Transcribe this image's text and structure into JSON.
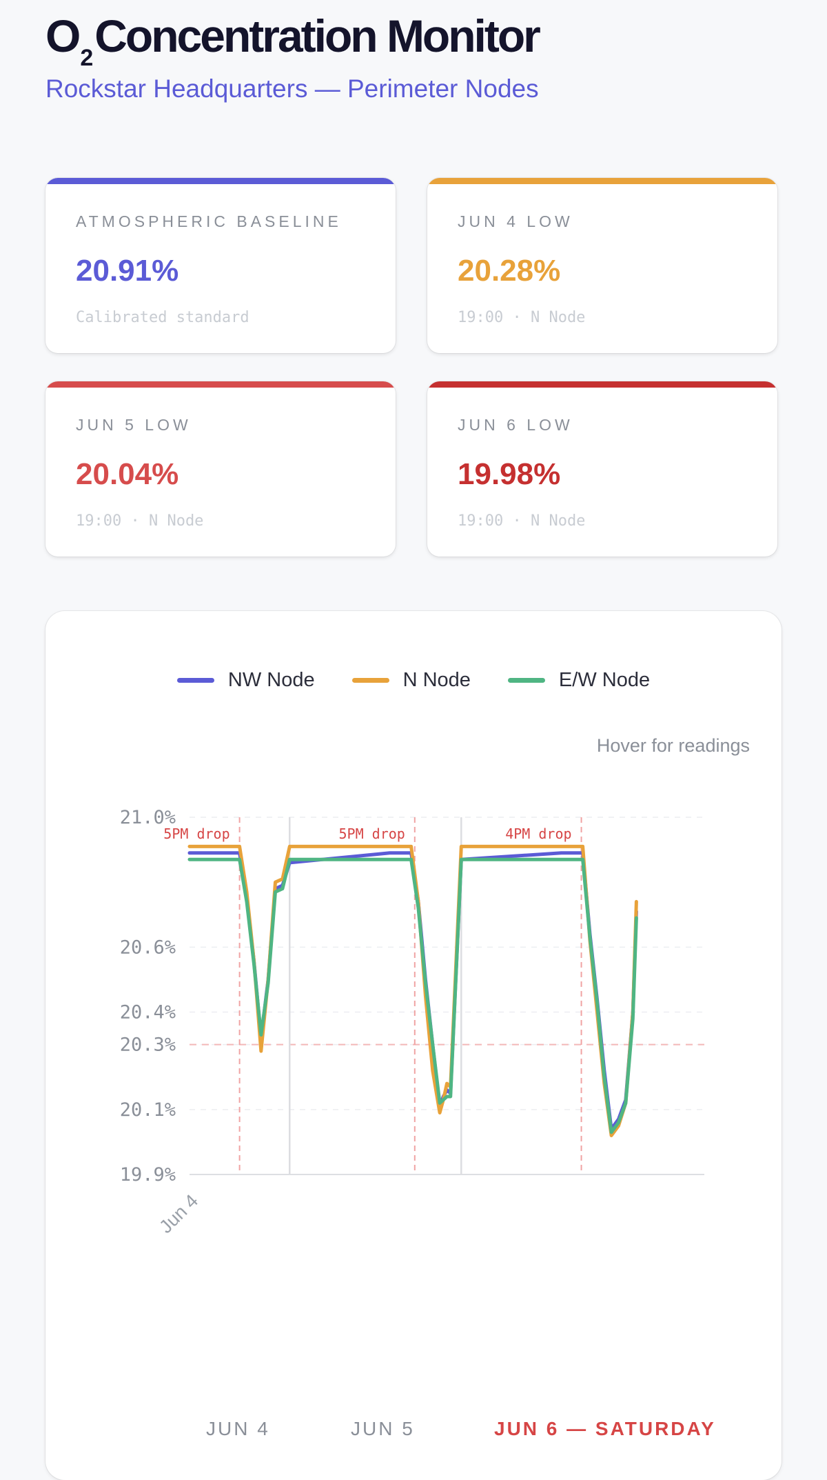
{
  "header": {
    "title_pre": "O",
    "title_sub": "2",
    "title_post": "Concentration Monitor",
    "subtitle": "Rockstar Headquarters — Perimeter Nodes"
  },
  "cards": [
    {
      "label": "ATMOSPHERIC BASELINE",
      "value": "20.91%",
      "note": "Calibrated standard",
      "color": "#5b5bd6"
    },
    {
      "label": "JUN 4 LOW",
      "value": "20.28%",
      "note": "19:00 · N Node",
      "color": "#e8a23a"
    },
    {
      "label": "JUN 5 LOW",
      "value": "20.04%",
      "note": "19:00 · N Node",
      "color": "#d64c4c"
    },
    {
      "label": "JUN 6 LOW",
      "value": "19.98%",
      "note": "19:00 · N Node",
      "color": "#c53030"
    }
  ],
  "chart": {
    "hint": "Hover for readings",
    "day_labels": [
      "JUN 4",
      "JUN 5",
      "JUN 6 — SATURDAY"
    ]
  },
  "chart_data": {
    "type": "line",
    "title": "",
    "xlabel": "",
    "ylabel": "",
    "ylim": [
      19.9,
      21.0
    ],
    "yticks": [
      "21.0%",
      "20.6%",
      "20.4%",
      "20.3%",
      "20.1%",
      "19.9%"
    ],
    "x_tick_labels": [
      "Jun 4"
    ],
    "x_range_hours": [
      10,
      82
    ],
    "legend_position": "top-center",
    "grid": true,
    "day_boundaries_hours": [
      24,
      48
    ],
    "reference_lines": [
      20.3
    ],
    "drop_markers": [
      {
        "hour": 17.0,
        "label": "5PM drop"
      },
      {
        "hour": 41.5,
        "label": "5PM drop"
      },
      {
        "hour": 64.8,
        "label": "4PM drop"
      }
    ],
    "series": [
      {
        "name": "NW Node",
        "color": "#5b5bd6",
        "x": [
          10,
          13,
          15,
          17,
          18,
          19,
          20,
          21,
          22,
          23,
          24,
          38,
          41,
          42,
          43,
          44,
          45,
          45.5,
          46,
          46.5,
          48,
          62,
          65,
          66,
          67,
          68,
          69,
          70,
          71,
          72,
          72.5
        ],
        "y": [
          20.89,
          20.89,
          20.89,
          20.89,
          20.75,
          20.56,
          20.32,
          20.5,
          20.78,
          20.79,
          20.86,
          20.89,
          20.89,
          20.74,
          20.5,
          20.3,
          20.11,
          20.14,
          20.16,
          20.15,
          20.87,
          20.89,
          20.89,
          20.64,
          20.44,
          20.22,
          20.04,
          20.07,
          20.13,
          20.4,
          20.71
        ],
        "labels": "none"
      },
      {
        "name": "N Node",
        "color": "#e8a23a",
        "x": [
          10,
          13,
          15,
          17,
          18,
          19,
          20,
          21,
          22,
          23,
          24,
          38,
          41,
          42,
          43,
          44,
          45,
          45.5,
          46,
          46.5,
          48,
          62,
          65,
          66,
          67,
          68,
          69,
          70,
          71,
          72,
          72.5
        ],
        "y": [
          20.91,
          20.91,
          20.91,
          20.91,
          20.77,
          20.56,
          20.28,
          20.5,
          20.8,
          20.81,
          20.91,
          20.91,
          20.91,
          20.74,
          20.45,
          20.22,
          20.09,
          20.13,
          20.18,
          20.17,
          20.91,
          20.91,
          20.91,
          20.62,
          20.4,
          20.18,
          20.02,
          20.05,
          20.12,
          20.4,
          20.74
        ]
      },
      {
        "name": "E/W Node",
        "color": "#4fb583",
        "x": [
          10,
          13,
          15,
          17,
          18,
          19,
          20,
          21,
          22,
          23,
          24,
          38,
          41,
          42,
          43,
          44,
          45,
          45.5,
          46,
          46.5,
          48,
          62,
          65,
          66,
          67,
          68,
          69,
          70,
          71,
          72,
          72.5
        ],
        "y": [
          20.87,
          20.87,
          20.87,
          20.87,
          20.74,
          20.55,
          20.33,
          20.49,
          20.77,
          20.78,
          20.87,
          20.87,
          20.87,
          20.72,
          20.49,
          20.3,
          20.12,
          20.13,
          20.14,
          20.14,
          20.87,
          20.87,
          20.87,
          20.63,
          20.43,
          20.2,
          20.03,
          20.06,
          20.12,
          20.38,
          20.69
        ]
      }
    ]
  }
}
